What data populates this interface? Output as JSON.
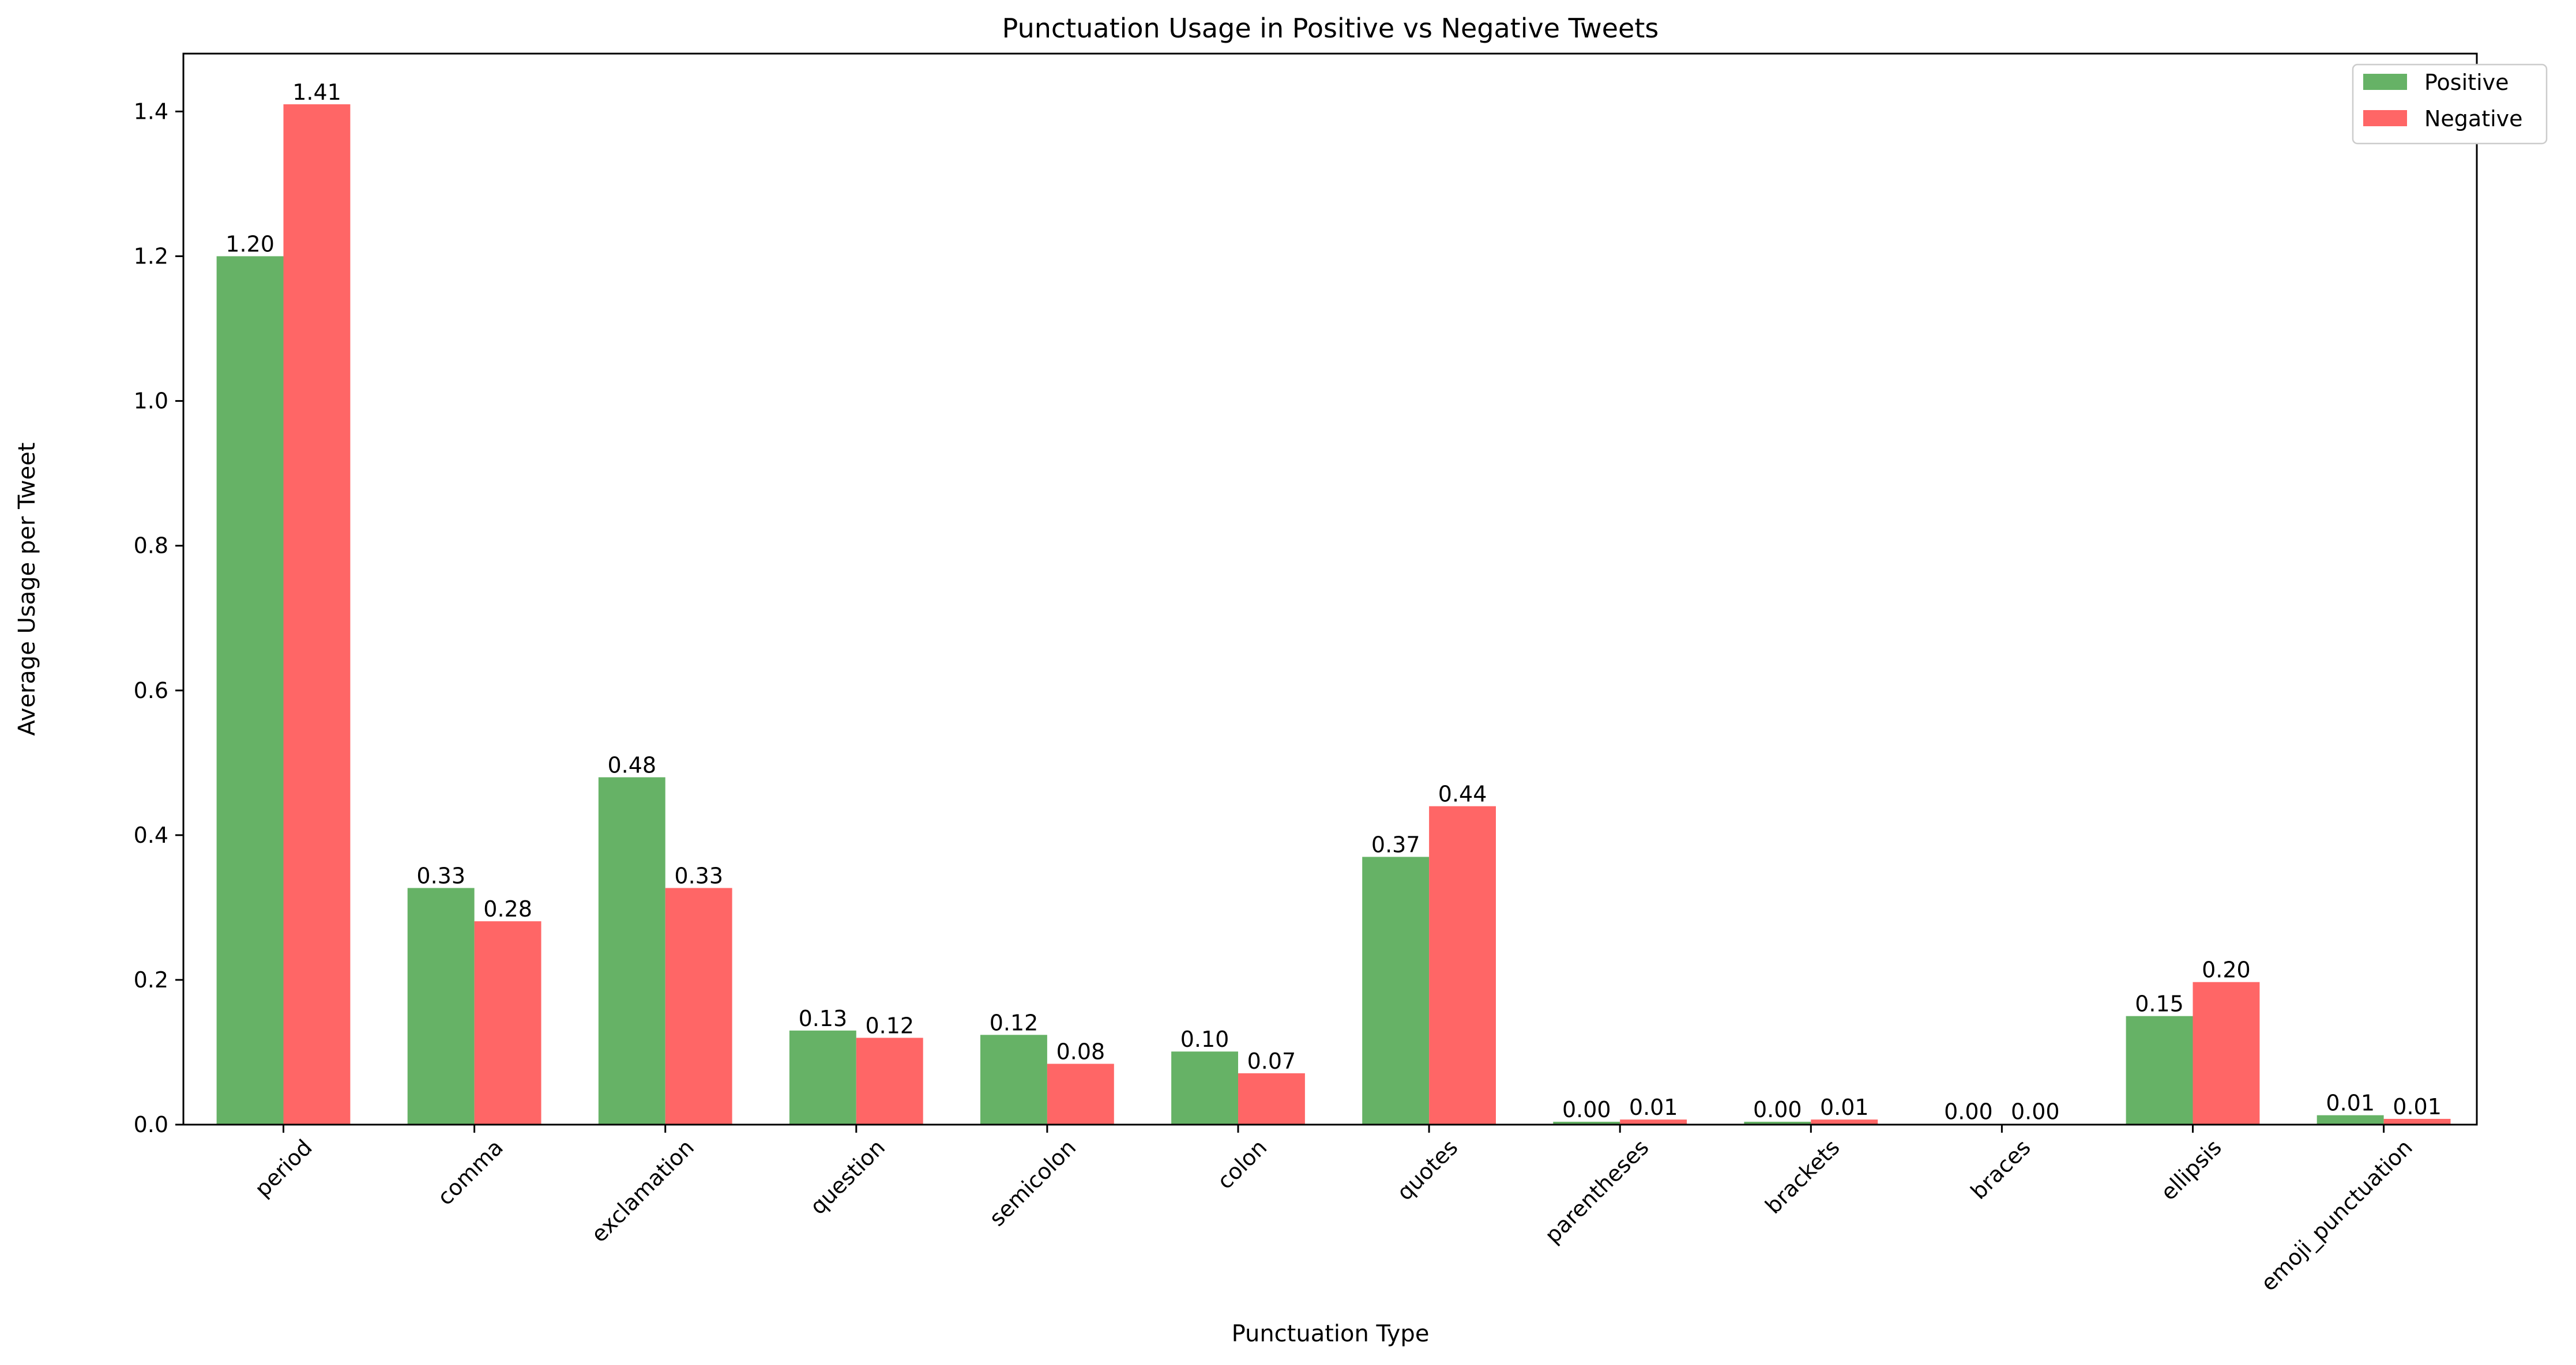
{
  "chart_data": {
    "type": "bar",
    "title": "Punctuation Usage in Positive vs Negative Tweets",
    "xlabel": "Punctuation Type",
    "ylabel": "Average Usage per Tweet",
    "ylim": [
      0,
      1.48
    ],
    "yticks": [
      "0.0",
      "0.2",
      "0.4",
      "0.6",
      "0.8",
      "1.0",
      "1.2",
      "1.4"
    ],
    "categories": [
      "period",
      "comma",
      "exclamation",
      "question",
      "semicolon",
      "colon",
      "quotes",
      "parentheses",
      "brackets",
      "braces",
      "ellipsis",
      "emoji_punctuation"
    ],
    "series": [
      {
        "name": "Positive",
        "color": "#66b266",
        "values": [
          1.2,
          0.327,
          0.48,
          0.13,
          0.124,
          0.101,
          0.37,
          0.004,
          0.004,
          0.001,
          0.15,
          0.013
        ],
        "value_labels": [
          "1.20",
          "0.33",
          "0.48",
          "0.13",
          "0.12",
          "0.10",
          "0.37",
          "0.00",
          "0.00",
          "0.00",
          "0.15",
          "0.01"
        ]
      },
      {
        "name": "Negative",
        "color": "#ff6666",
        "values": [
          1.41,
          0.281,
          0.327,
          0.12,
          0.084,
          0.071,
          0.44,
          0.007,
          0.007,
          0.001,
          0.197,
          0.008
        ],
        "value_labels": [
          "1.41",
          "0.28",
          "0.33",
          "0.12",
          "0.08",
          "0.07",
          "0.44",
          "0.01",
          "0.01",
          "0.00",
          "0.20",
          "0.01"
        ]
      }
    ],
    "legend": "top-right",
    "grid": false
  }
}
